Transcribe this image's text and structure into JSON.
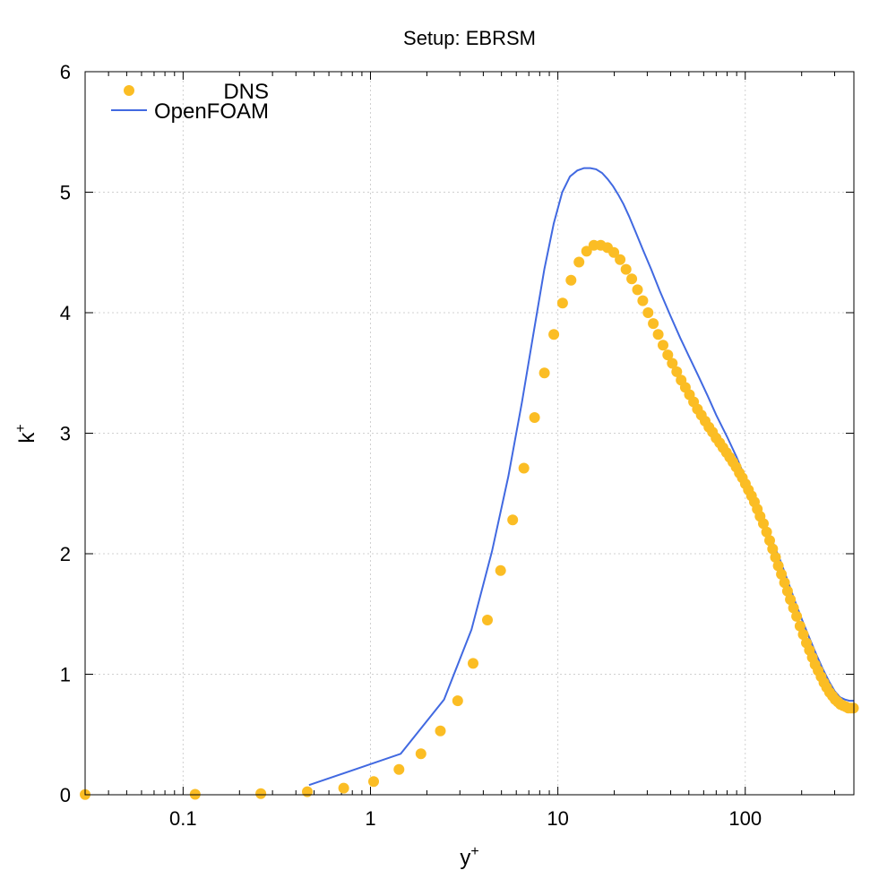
{
  "chart_data": {
    "type": "scatter",
    "title": "Setup: EBRSM",
    "xlabel": "y",
    "xlabel_sup": "+",
    "ylabel": "k",
    "ylabel_sup": "+",
    "xscale": "log",
    "xlim": [
      0.03,
      380
    ],
    "ylim": [
      0,
      6
    ],
    "grid": true,
    "legend_position": "top-left",
    "xticks": [
      {
        "value": 0.1,
        "label": "0.1"
      },
      {
        "value": 1,
        "label": "1"
      },
      {
        "value": 10,
        "label": "10"
      },
      {
        "value": 100,
        "label": "100"
      }
    ],
    "yticks": [
      {
        "value": 0,
        "label": "0"
      },
      {
        "value": 1,
        "label": "1"
      },
      {
        "value": 2,
        "label": "2"
      },
      {
        "value": 3,
        "label": "3"
      },
      {
        "value": 4,
        "label": "4"
      },
      {
        "value": 5,
        "label": "5"
      },
      {
        "value": 6,
        "label": "6"
      }
    ],
    "series": [
      {
        "name": "DNS",
        "kind": "points",
        "color": "#fbbd24",
        "x": [
          0.03,
          0.116,
          0.26,
          0.46,
          0.72,
          1.04,
          1.42,
          1.86,
          2.36,
          2.92,
          3.53,
          4.21,
          4.95,
          5.74,
          6.59,
          7.51,
          8.48,
          9.51,
          10.6,
          11.75,
          12.96,
          14.23,
          15.56,
          16.95,
          18.4,
          19.9,
          21.5,
          23.1,
          24.8,
          26.6,
          28.4,
          30.3,
          32.3,
          34.3,
          36.4,
          38.6,
          40.8,
          43.1,
          45.5,
          47.9,
          50.4,
          53.0,
          55.6,
          58.3,
          61.1,
          64.0,
          66.9,
          69.9,
          73.0,
          76.1,
          79.3,
          82.6,
          86.0,
          89.4,
          93.0,
          96.5,
          100.2,
          104,
          108,
          112,
          116,
          120,
          125,
          130,
          135,
          140,
          145,
          150,
          156,
          162,
          168,
          174,
          181,
          188,
          196,
          204,
          212,
          220,
          228,
          236,
          245,
          254,
          263,
          272,
          282,
          292,
          302,
          312,
          322,
          333,
          344,
          355,
          366,
          378
        ],
        "y": [
          0.002,
          0.004,
          0.01,
          0.025,
          0.055,
          0.11,
          0.21,
          0.34,
          0.53,
          0.78,
          1.09,
          1.45,
          1.86,
          2.28,
          2.71,
          3.13,
          3.5,
          3.82,
          4.08,
          4.27,
          4.42,
          4.51,
          4.56,
          4.56,
          4.54,
          4.5,
          4.44,
          4.36,
          4.28,
          4.19,
          4.1,
          4.0,
          3.91,
          3.82,
          3.73,
          3.65,
          3.58,
          3.51,
          3.44,
          3.38,
          3.32,
          3.26,
          3.2,
          3.15,
          3.1,
          3.05,
          3.01,
          2.96,
          2.92,
          2.88,
          2.84,
          2.8,
          2.76,
          2.72,
          2.67,
          2.63,
          2.58,
          2.53,
          2.48,
          2.43,
          2.37,
          2.31,
          2.25,
          2.18,
          2.11,
          2.04,
          1.97,
          1.9,
          1.83,
          1.76,
          1.69,
          1.62,
          1.55,
          1.48,
          1.4,
          1.33,
          1.26,
          1.2,
          1.14,
          1.08,
          1.03,
          0.98,
          0.93,
          0.89,
          0.85,
          0.82,
          0.79,
          0.77,
          0.75,
          0.74,
          0.73,
          0.72,
          0.72,
          0.72
        ]
      },
      {
        "name": "OpenFOAM",
        "kind": "line",
        "color": "#4169e1",
        "x": [
          0.47,
          1.45,
          2.47,
          3.46,
          4.45,
          5.44,
          6.44,
          7.45,
          8.47,
          9.5,
          10.55,
          11.6,
          12.7,
          13.8,
          14.9,
          16.0,
          17.2,
          18.4,
          19.7,
          21.0,
          22.4,
          24.0,
          26.0,
          28.5,
          31.5,
          35,
          40,
          45,
          50,
          56,
          63,
          70,
          80,
          90,
          100,
          112,
          125,
          140,
          155,
          170,
          185,
          200,
          220,
          240,
          260,
          280,
          300,
          320,
          340,
          360,
          380
        ],
        "y": [
          0.08,
          0.34,
          0.79,
          1.37,
          2.02,
          2.64,
          3.26,
          3.85,
          4.36,
          4.74,
          5.0,
          5.13,
          5.18,
          5.2,
          5.2,
          5.19,
          5.16,
          5.11,
          5.05,
          4.98,
          4.9,
          4.8,
          4.67,
          4.52,
          4.36,
          4.18,
          3.97,
          3.79,
          3.64,
          3.48,
          3.31,
          3.15,
          2.97,
          2.8,
          2.63,
          2.45,
          2.28,
          2.1,
          1.93,
          1.76,
          1.6,
          1.46,
          1.3,
          1.16,
          1.04,
          0.94,
          0.86,
          0.81,
          0.79,
          0.78,
          0.78
        ]
      }
    ]
  }
}
